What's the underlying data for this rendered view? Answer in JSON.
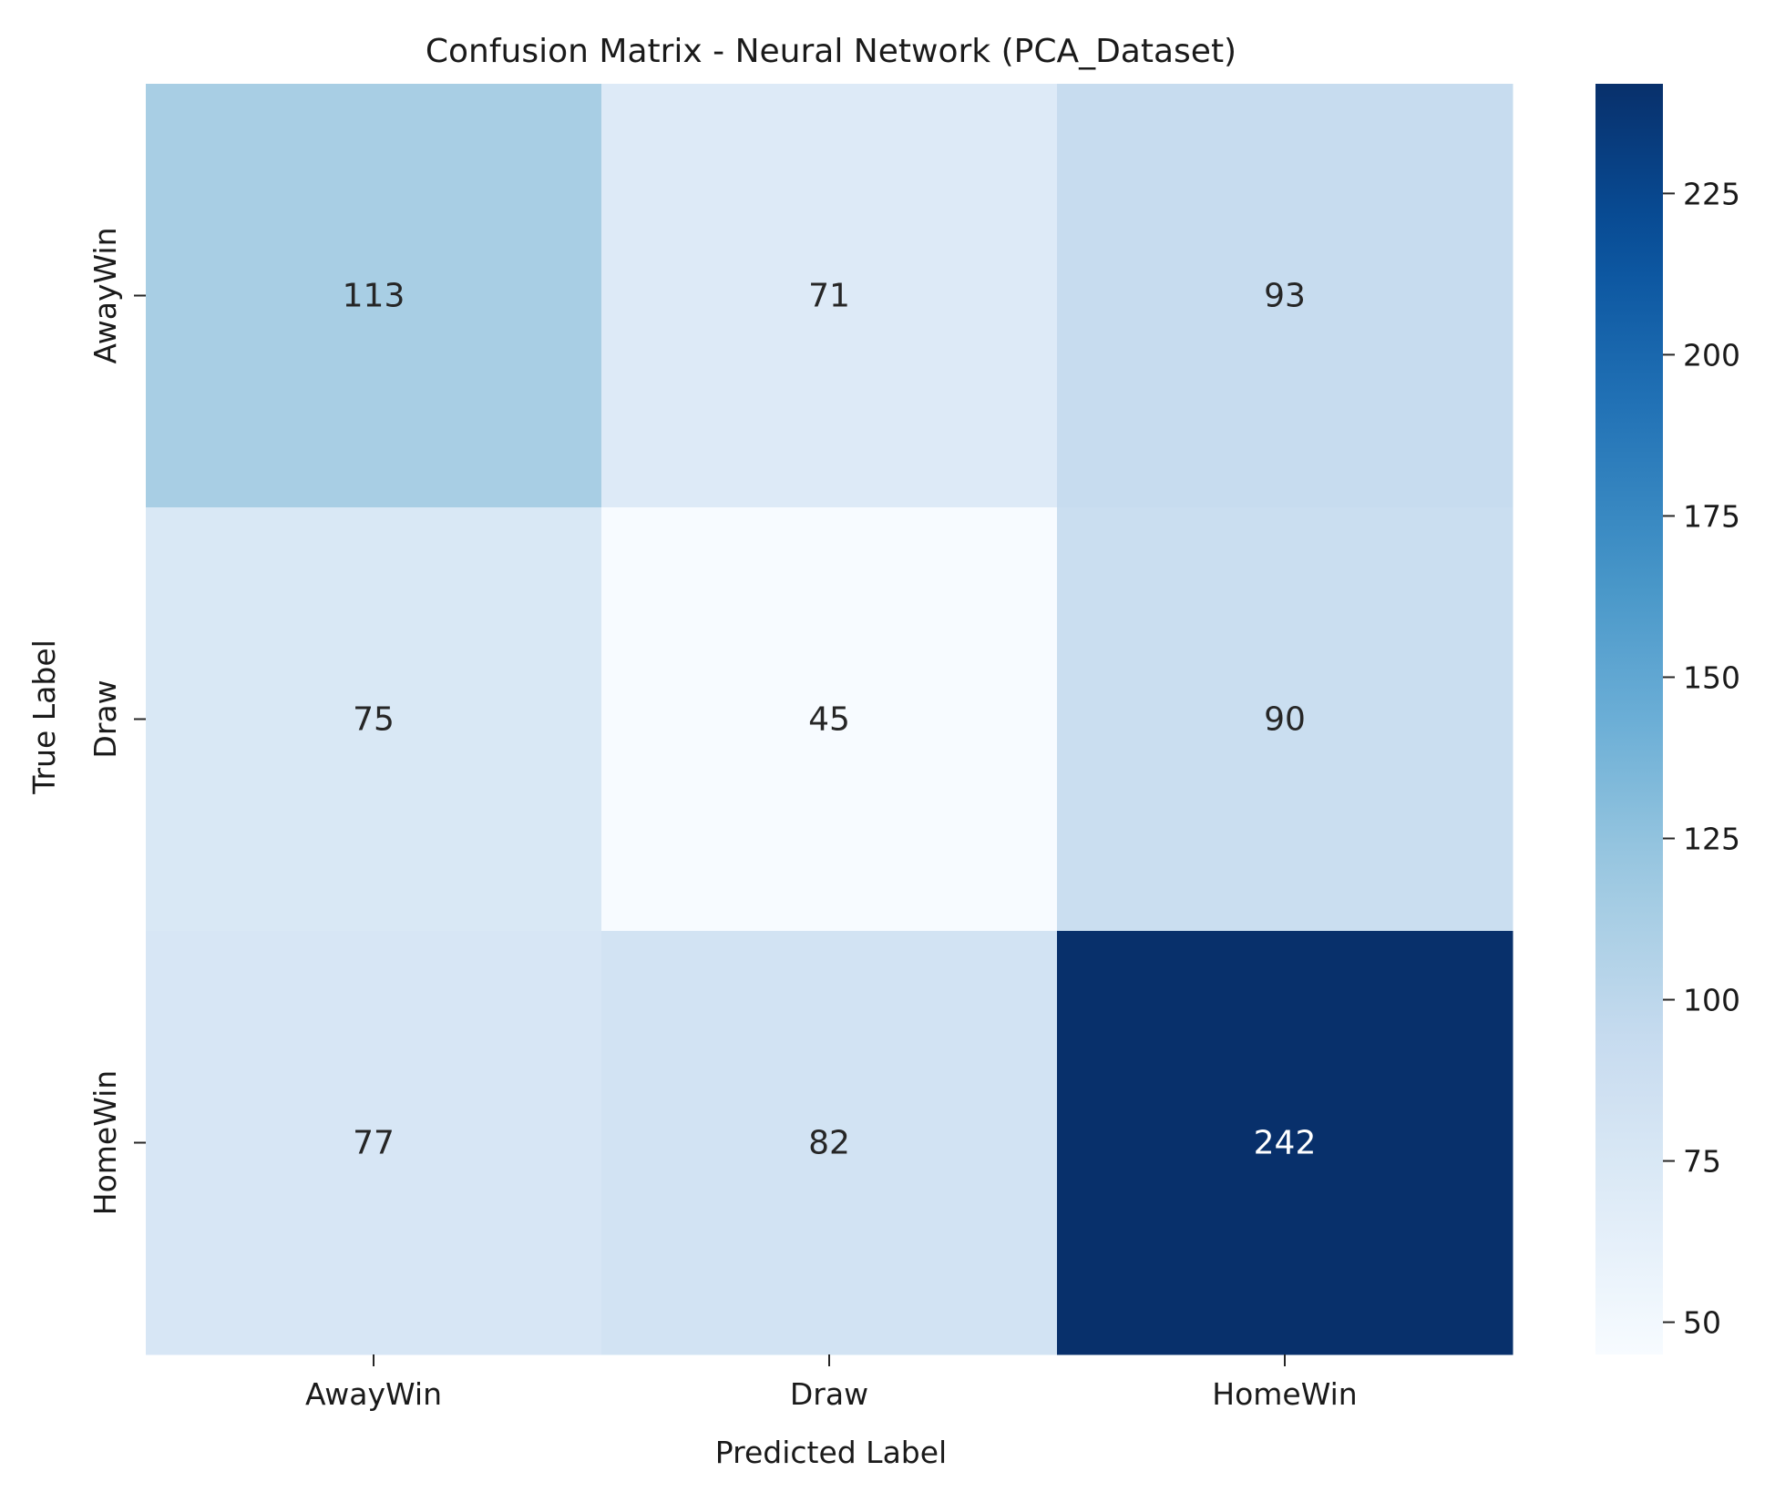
{
  "chart_data": {
    "type": "heatmap",
    "title": "Confusion Matrix - Neural Network (PCA_Dataset)",
    "xlabel": "Predicted Label",
    "ylabel": "True Label",
    "x_categories": [
      "AwayWin",
      "Draw",
      "HomeWin"
    ],
    "y_categories": [
      "AwayWin",
      "Draw",
      "HomeWin"
    ],
    "matrix": [
      [
        113,
        71,
        93
      ],
      [
        75,
        45,
        90
      ],
      [
        77,
        82,
        242
      ]
    ],
    "colormap": "Blues",
    "colorbar": {
      "range": [
        45,
        242
      ],
      "ticks": [
        50,
        75,
        100,
        125,
        150,
        175,
        200,
        225
      ]
    },
    "grid": false,
    "legend": "none"
  }
}
